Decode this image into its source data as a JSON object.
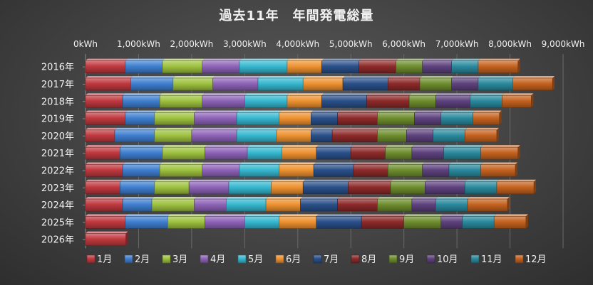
{
  "chart_data": {
    "type": "bar",
    "orientation": "horizontal",
    "stacked": true,
    "title": "過去11年　年間発電総量",
    "axis_position": "top",
    "xlim": [
      0,
      9000
    ],
    "x_ticks": [
      "0kWh",
      "1,000kWh",
      "2,000kWh",
      "3,000kWh",
      "4,000kWh",
      "5,000kWh",
      "6,000kWh",
      "7,000kWh",
      "8,000kWh",
      "9,000kWh"
    ],
    "grid": true,
    "legend_position": "bottom",
    "categories": [
      "2016年",
      "2017年",
      "2018年",
      "2019年",
      "2020年",
      "2021年",
      "2022年",
      "2023年",
      "2024年",
      "2025年",
      "2026年"
    ],
    "series": [
      {
        "name": "1月",
        "color": "#c0393f",
        "values": [
          750,
          850,
          700,
          750,
          550,
          650,
          700,
          650,
          700,
          750,
          760
        ]
      },
      {
        "name": "2月",
        "color": "#3f7fd0",
        "values": [
          700,
          800,
          700,
          550,
          750,
          800,
          700,
          650,
          550,
          800,
          0
        ]
      },
      {
        "name": "3月",
        "color": "#9ec23f",
        "values": [
          750,
          750,
          800,
          750,
          700,
          800,
          800,
          650,
          800,
          700,
          0
        ]
      },
      {
        "name": "4月",
        "color": "#8e63b8",
        "values": [
          700,
          850,
          800,
          800,
          850,
          800,
          700,
          750,
          600,
          750,
          0
        ]
      },
      {
        "name": "5月",
        "color": "#36b8d0",
        "values": [
          900,
          850,
          800,
          800,
          750,
          650,
          750,
          800,
          750,
          650,
          0
        ]
      },
      {
        "name": "6月",
        "color": "#ee9230",
        "values": [
          650,
          750,
          650,
          600,
          650,
          650,
          650,
          600,
          650,
          700,
          0
        ]
      },
      {
        "name": "7月",
        "color": "#2a508a",
        "values": [
          700,
          850,
          850,
          500,
          400,
          650,
          750,
          850,
          700,
          850,
          0
        ]
      },
      {
        "name": "8月",
        "color": "#8e2a2a",
        "values": [
          700,
          600,
          800,
          750,
          850,
          650,
          650,
          800,
          750,
          800,
          0
        ]
      },
      {
        "name": "9月",
        "color": "#6e8e2e",
        "values": [
          500,
          600,
          500,
          700,
          550,
          500,
          650,
          650,
          650,
          700,
          0
        ]
      },
      {
        "name": "10月",
        "color": "#5e427e",
        "values": [
          550,
          500,
          650,
          500,
          500,
          600,
          500,
          750,
          450,
          400,
          0
        ]
      },
      {
        "name": "11月",
        "color": "#2a8a9e",
        "values": [
          500,
          650,
          600,
          600,
          600,
          700,
          600,
          600,
          600,
          600,
          0
        ]
      },
      {
        "name": "12月",
        "color": "#c5621f",
        "values": [
          750,
          750,
          550,
          500,
          600,
          700,
          650,
          700,
          750,
          600,
          0
        ]
      }
    ]
  }
}
